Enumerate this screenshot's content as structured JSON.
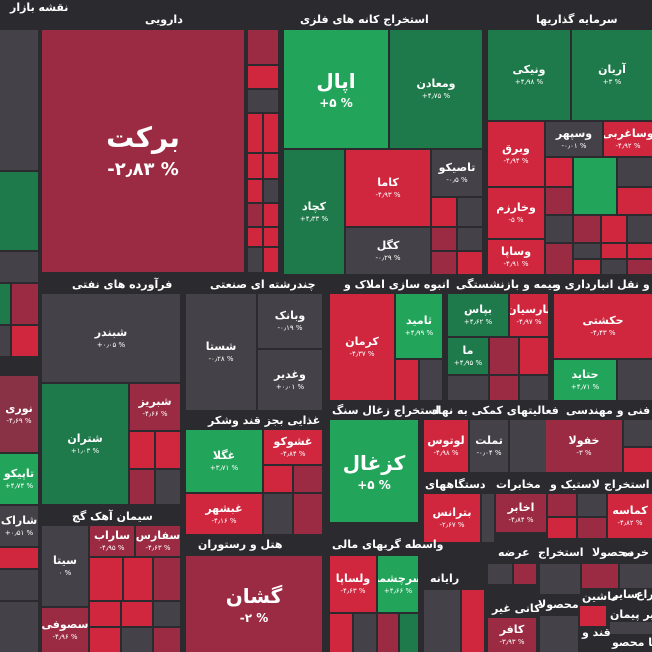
{
  "title": "نقشه بازار",
  "sectors": {
    "darooee": "دارویی",
    "ostekhraj_felezi": "استخراج کانه های فلزی",
    "sarmaye_gozariha": "سرمایه گذاریها",
    "faravarde_nafti": "فرآورده های نفتی",
    "chand_reshte": "چندرشته ای صنعتی",
    "amlak": "انبوه سازی املاک و",
    "bime": "بیمه و بازنشستگی",
    "haml_naghl": "حمل و نقل انبارداری و",
    "ghazaee": "غذایی بجز قند وشکر",
    "zoghal": "استخراج زغال سنگ",
    "komaki": "فعالیتهای کمکی به نهاد",
    "fanni": "فنی و مهندسی",
    "dastgahha": "دستگاههای",
    "mokhaberat": "مخابرات",
    "lastik": "لاستیک و",
    "ostekhraj2": "استخراج",
    "siman": "سیمان آهک گچ",
    "hotel": "هتل و رستوران",
    "vasete": "واسطه گریهای مالی",
    "rayane": "رایانه",
    "arze": "عرضه",
    "ostekhraj3": "استخراج",
    "mahsoula": "محصولا",
    "khorde": "خرده",
    "kani_gheir": "کانی غیر",
    "mahsoula2": "محصولا",
    "sayer": "سایر",
    "masheenr": "ماشین",
    "zera": "زراع",
    "sabr_pyman": "سایر پیمان",
    "ghand": "قند و",
    "kaf_mahsol": "کا محصو"
  },
  "tiles": {
    "barkat": {
      "name": "برکت",
      "pct": "% ۲٫۸۳-"
    },
    "apal": {
      "name": "اپال",
      "pct": "% ۵+"
    },
    "vamaaden": {
      "name": "ومعادن",
      "pct": "% ۴٫۷۵+"
    },
    "kachad": {
      "name": "کچاد",
      "pct": "% ۴٫۳۳+"
    },
    "kama": {
      "name": "کاما",
      "pct": "% ۴٫۹۳-"
    },
    "taspiko": {
      "name": "تاصیکو",
      "pct": "% ۰٫۵-"
    },
    "kagol": {
      "name": "کگل",
      "pct": "% ۰٫۲۹-"
    },
    "aryan": {
      "name": "آریان",
      "pct": "% ۳+"
    },
    "vaneki": {
      "name": "ونیکی",
      "pct": "% ۴٫۹۸+"
    },
    "vaghadir_s": {
      "name": "وساغربی",
      "pct": "% ۴٫۹۲-"
    },
    "vasepehr": {
      "name": "وسپهر",
      "pct": "% ۰٫۰۱-"
    },
    "varegh": {
      "name": "وبرق",
      "pct": "% ۴٫۹۴-"
    },
    "vakharazm": {
      "name": "وخارزم",
      "pct": "% ۵-"
    },
    "vasapa": {
      "name": "وساپا",
      "pct": "% ۴٫۹۱-"
    },
    "shabandar": {
      "name": "شبندر",
      "pct": "% ۰٫۰۵+"
    },
    "shatran": {
      "name": "شتران",
      "pct": "% ۱٫۰۳+"
    },
    "shabriz": {
      "name": "شبریز",
      "pct": "% ۴٫۶۶-"
    },
    "vabank": {
      "name": "وبانک",
      "pct": "% ۰٫۱۹-"
    },
    "shasta": {
      "name": "شستا",
      "pct": "% ۰٫۲۸-"
    },
    "vaghadir": {
      "name": "وغدیر",
      "pct": "% ۰٫۰۱+"
    },
    "kerman": {
      "name": "کرمان",
      "pct": "% ۴٫۳۷-"
    },
    "saamid": {
      "name": "ثامید",
      "pct": "% ۴٫۹۹+"
    },
    "bapas": {
      "name": "بپاس",
      "pct": "% ۴٫۶۲+"
    },
    "parsian": {
      "name": "پارسیان",
      "pct": "% ۴٫۹۷-"
    },
    "ma": {
      "name": "ما",
      "pct": "% ۴٫۹۵+"
    },
    "hakeshti": {
      "name": "حکشتی",
      "pct": "% ۴٫۴۳-"
    },
    "hataid": {
      "name": "حتاید",
      "pct": "% ۴٫۷۱+"
    },
    "ghegelaz": {
      "name": "غگلا",
      "pct": "% ۳٫۷۱+"
    },
    "ghashoko": {
      "name": "غشوکو",
      "pct": "% ۴٫۸۴-"
    },
    "gheshahar": {
      "name": "غبشهر",
      "pct": "% ۴٫۱۶-"
    },
    "kazal": {
      "name": "کزغال",
      "pct": "% ۵+"
    },
    "lotoos": {
      "name": "لوتوس",
      "pct": "% ۴٫۹۸-"
    },
    "tamalat": {
      "name": "تملت",
      "pct": "% ۰٫۰۴-"
    },
    "kholoula": {
      "name": "خفولا",
      "pct": "% ۳-"
    },
    "betranas": {
      "name": "بترانس",
      "pct": "% ۲٫۶۷-"
    },
    "akhaber": {
      "name": "اخابر",
      "pct": "% ۴٫۸۴-"
    },
    "kamase": {
      "name": "کماسه",
      "pct": "% ۴٫۸۲-"
    },
    "sita": {
      "name": "سیتا",
      "pct": "% ۰"
    },
    "safars": {
      "name": "سفارس",
      "pct": "% ۴٫۶۳-"
    },
    "sarab": {
      "name": "ساراب",
      "pct": "% ۴٫۹۵-"
    },
    "sasufi": {
      "name": "سصوفی",
      "pct": "% ۴٫۹۶-"
    },
    "gashan": {
      "name": "گشان",
      "pct": "% ۲-"
    },
    "valsapa": {
      "name": "ولساپا",
      "pct": "% ۴٫۶۳-"
    },
    "sarcheshme": {
      "name": "سرچشمه",
      "pct": "% ۴٫۶۶+"
    },
    "kafar": {
      "name": "کافر",
      "pct": "% ۳٫۹۳-"
    },
    "nouri": {
      "name": "نوری",
      "pct": "% ۴٫۶۹-"
    },
    "tapiko": {
      "name": "تاپیکو",
      "pct": "% ۴٫۷۴+"
    },
    "sharak": {
      "name": "شاراک",
      "pct": "% ۰٫۵۱+"
    }
  }
}
